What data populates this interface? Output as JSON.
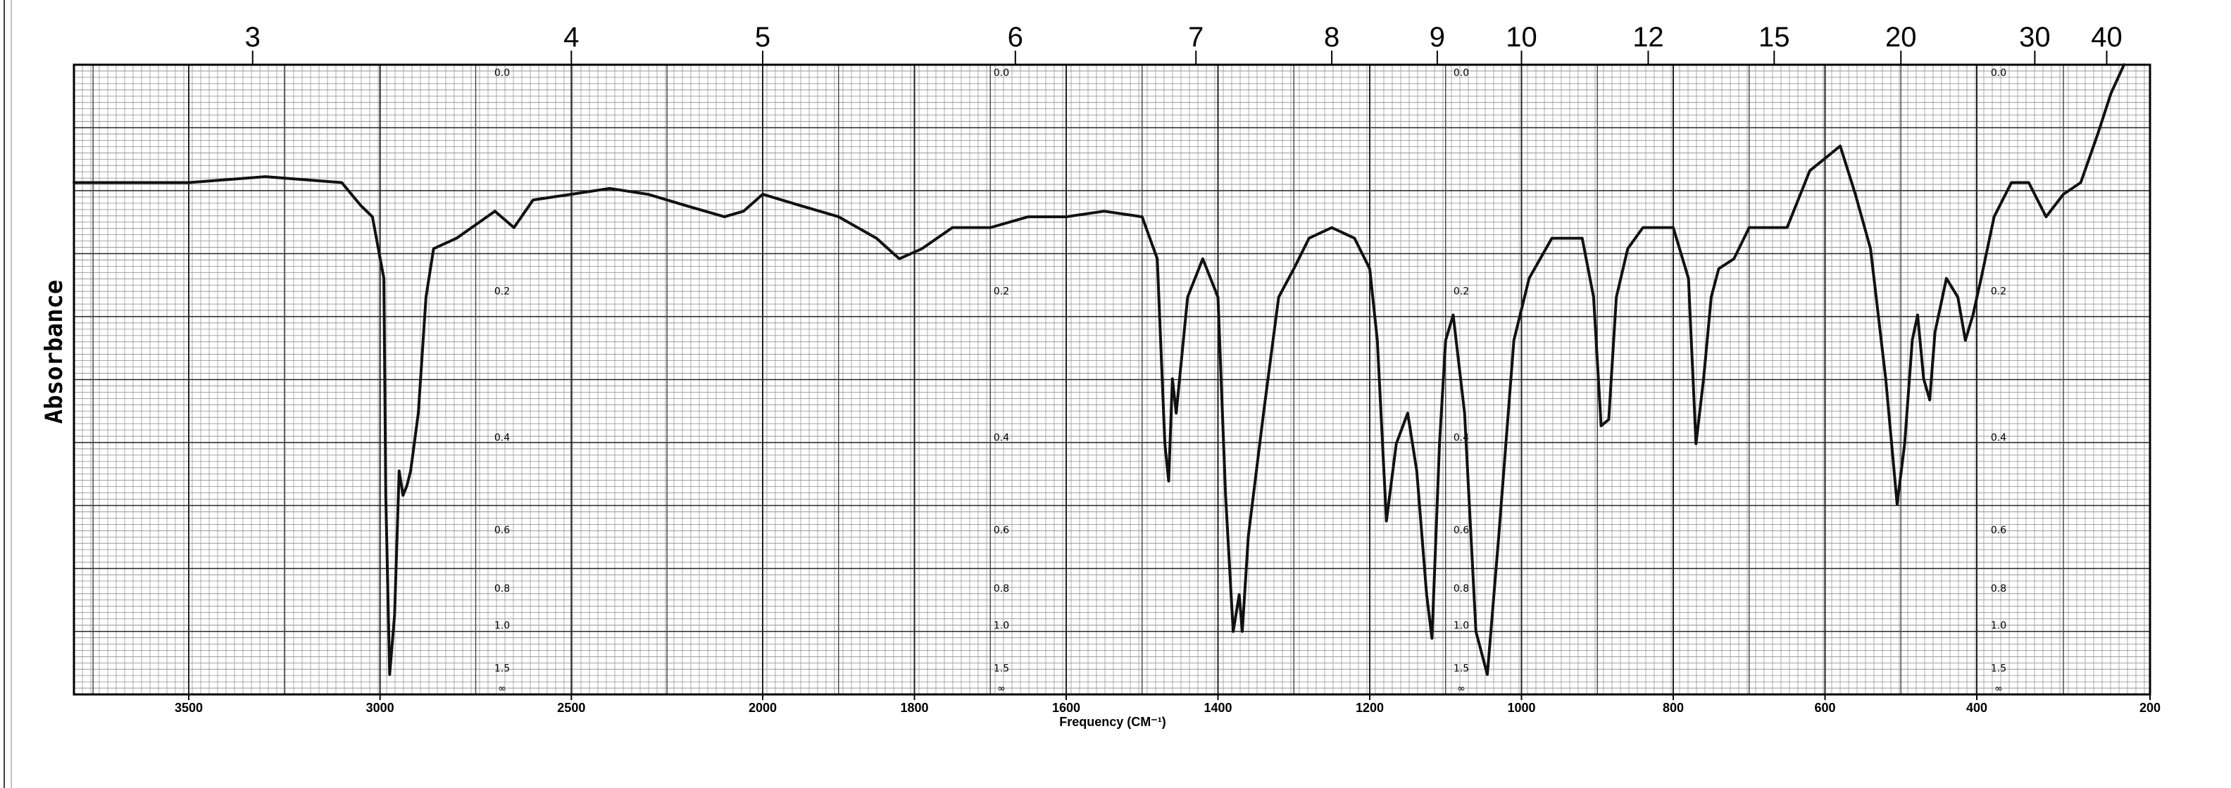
{
  "chart_data": {
    "type": "line",
    "xlabel": "Frequency (CM⁻¹)",
    "ylabel": "Absorbance",
    "x_axis": {
      "ticks": [
        3500,
        3000,
        2500,
        2000,
        1800,
        1600,
        1400,
        1200,
        1000,
        800,
        600,
        400,
        200
      ],
      "range": [
        3800,
        200
      ]
    },
    "top_axis": {
      "label_values": [
        3,
        4,
        5,
        6,
        7,
        8,
        9,
        10,
        12,
        15,
        20,
        30,
        40
      ],
      "label_positions_cm1": [
        3333,
        2500,
        2000,
        1667,
        1429,
        1250,
        1111,
        1000,
        833,
        667,
        500,
        333,
        250
      ]
    },
    "absorbance_scale": {
      "labels": [
        "0.0",
        "0.2",
        "0.4",
        "0.6",
        "0.8",
        "1.0",
        "1.5",
        "∞"
      ],
      "values": [
        0,
        0.2,
        0.4,
        0.6,
        0.8,
        1.0,
        1.5,
        3.0
      ]
    },
    "grid": true,
    "series": [
      {
        "points": [
          [
            3800,
            0.09
          ],
          [
            3500,
            0.09
          ],
          [
            3300,
            0.085
          ],
          [
            3100,
            0.09
          ],
          [
            3050,
            0.11
          ],
          [
            3020,
            0.12
          ],
          [
            2990,
            0.18
          ],
          [
            2985,
            0.5
          ],
          [
            2975,
            1.5
          ],
          [
            2962,
            0.9
          ],
          [
            2950,
            0.45
          ],
          [
            2940,
            0.5
          ],
          [
            2930,
            0.48
          ],
          [
            2920,
            0.45
          ],
          [
            2900,
            0.35
          ],
          [
            2880,
            0.2
          ],
          [
            2860,
            0.15
          ],
          [
            2800,
            0.14
          ],
          [
            2700,
            0.115
          ],
          [
            2650,
            0.13
          ],
          [
            2600,
            0.105
          ],
          [
            2500,
            0.1
          ],
          [
            2400,
            0.095
          ],
          [
            2300,
            0.1
          ],
          [
            2200,
            0.11
          ],
          [
            2100,
            0.12
          ],
          [
            2050,
            0.115
          ],
          [
            2000,
            0.1
          ],
          [
            1950,
            0.11
          ],
          [
            1900,
            0.12
          ],
          [
            1850,
            0.14
          ],
          [
            1820,
            0.16
          ],
          [
            1790,
            0.15
          ],
          [
            1750,
            0.13
          ],
          [
            1700,
            0.13
          ],
          [
            1650,
            0.12
          ],
          [
            1600,
            0.12
          ],
          [
            1550,
            0.115
          ],
          [
            1500,
            0.12
          ],
          [
            1480,
            0.16
          ],
          [
            1470,
            0.4
          ],
          [
            1465,
            0.47
          ],
          [
            1460,
            0.3
          ],
          [
            1455,
            0.35
          ],
          [
            1440,
            0.2
          ],
          [
            1420,
            0.16
          ],
          [
            1400,
            0.2
          ],
          [
            1390,
            0.5
          ],
          [
            1380,
            1.0
          ],
          [
            1372,
            0.8
          ],
          [
            1368,
            1.0
          ],
          [
            1360,
            0.6
          ],
          [
            1340,
            0.35
          ],
          [
            1320,
            0.2
          ],
          [
            1300,
            0.17
          ],
          [
            1280,
            0.14
          ],
          [
            1250,
            0.13
          ],
          [
            1220,
            0.14
          ],
          [
            1200,
            0.17
          ],
          [
            1190,
            0.25
          ],
          [
            1178,
            0.56
          ],
          [
            1165,
            0.4
          ],
          [
            1150,
            0.35
          ],
          [
            1138,
            0.45
          ],
          [
            1125,
            0.8
          ],
          [
            1118,
            1.05
          ],
          [
            1108,
            0.4
          ],
          [
            1100,
            0.25
          ],
          [
            1090,
            0.22
          ],
          [
            1075,
            0.35
          ],
          [
            1060,
            1.0
          ],
          [
            1045,
            1.5
          ],
          [
            1030,
            0.6
          ],
          [
            1010,
            0.25
          ],
          [
            990,
            0.18
          ],
          [
            960,
            0.14
          ],
          [
            920,
            0.14
          ],
          [
            905,
            0.2
          ],
          [
            895,
            0.37
          ],
          [
            885,
            0.36
          ],
          [
            875,
            0.2
          ],
          [
            860,
            0.15
          ],
          [
            840,
            0.13
          ],
          [
            800,
            0.13
          ],
          [
            780,
            0.18
          ],
          [
            770,
            0.4
          ],
          [
            760,
            0.3
          ],
          [
            750,
            0.2
          ],
          [
            740,
            0.17
          ],
          [
            720,
            0.16
          ],
          [
            700,
            0.13
          ],
          [
            680,
            0.13
          ],
          [
            650,
            0.13
          ],
          [
            620,
            0.08
          ],
          [
            600,
            0.07
          ],
          [
            580,
            0.06
          ],
          [
            560,
            0.1
          ],
          [
            540,
            0.15
          ],
          [
            520,
            0.3
          ],
          [
            505,
            0.52
          ],
          [
            495,
            0.4
          ],
          [
            485,
            0.25
          ],
          [
            478,
            0.22
          ],
          [
            470,
            0.3
          ],
          [
            462,
            0.33
          ],
          [
            455,
            0.24
          ],
          [
            440,
            0.18
          ],
          [
            425,
            0.2
          ],
          [
            415,
            0.25
          ],
          [
            405,
            0.22
          ],
          [
            395,
            0.18
          ],
          [
            380,
            0.12
          ],
          [
            360,
            0.09
          ],
          [
            340,
            0.09
          ],
          [
            320,
            0.12
          ],
          [
            300,
            0.1
          ],
          [
            280,
            0.09
          ],
          [
            260,
            0.05
          ],
          [
            245,
            0.02
          ],
          [
            230,
            0.0
          ]
        ]
      }
    ]
  }
}
